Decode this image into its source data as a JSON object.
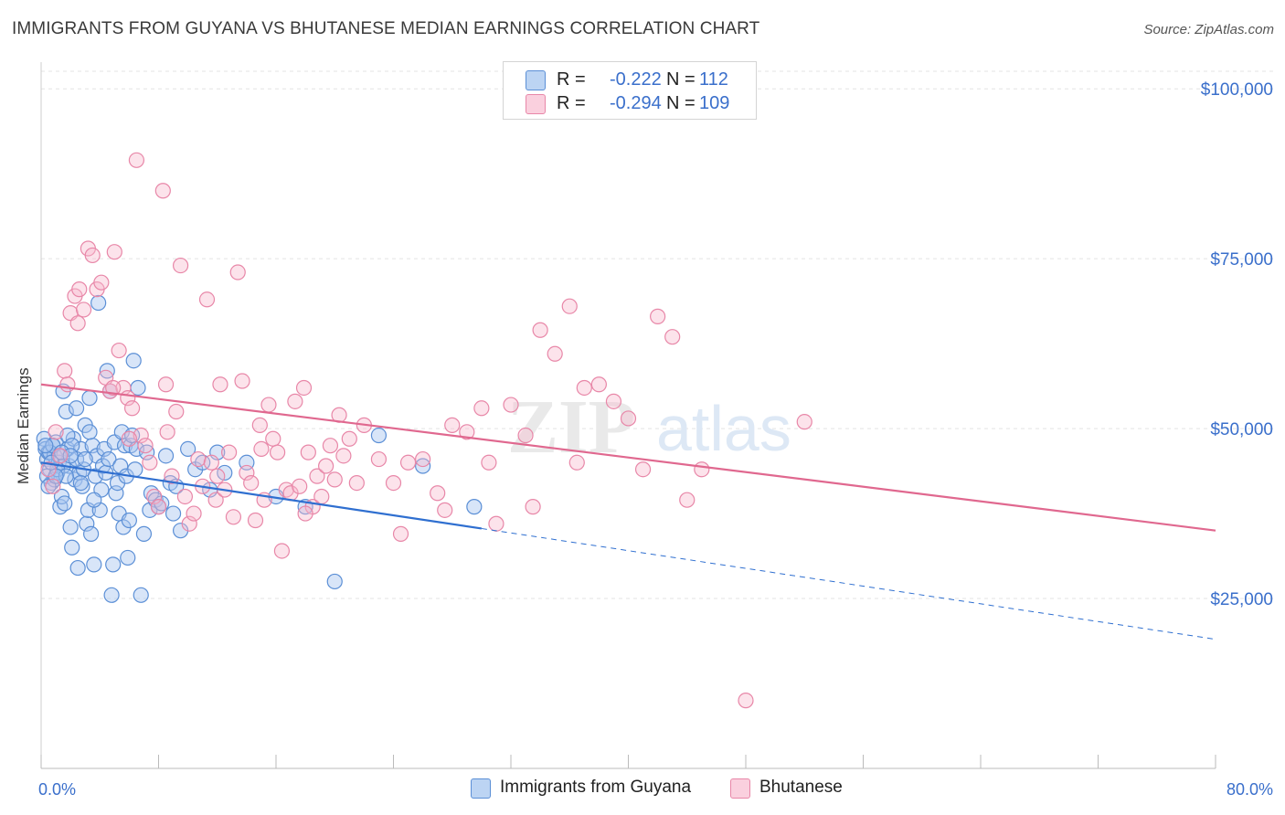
{
  "title": "IMMIGRANTS FROM GUYANA VS BHUTANESE MEDIAN EARNINGS CORRELATION CHART",
  "source": "Source: ZipAtlas.com",
  "watermark_zip": "ZIP",
  "watermark_atlas": "atlas",
  "colors": {
    "blue_fill": "#a8c6f0",
    "blue_stroke": "#5b8fd6",
    "blue_line": "#2f6fd0",
    "pink_fill": "#f7b9cd",
    "pink_stroke": "#e887a8",
    "pink_line": "#e0688f",
    "tick_label": "#3a6fcb",
    "grid": "#e3e3e3"
  },
  "legend_top": {
    "rows": [
      {
        "r_label": "R =",
        "r_value": "-0.222",
        "n_label": "N =",
        "n_value": "112"
      },
      {
        "r_label": "R =",
        "r_value": "-0.294",
        "n_label": "N =",
        "n_value": "109"
      }
    ]
  },
  "legend_bottom": [
    "Immigrants from Guyana",
    "Bhutanese"
  ],
  "chart_data": {
    "type": "scatter",
    "title": "IMMIGRANTS FROM GUYANA VS BHUTANESE MEDIAN EARNINGS CORRELATION CHART",
    "xlabel": "",
    "ylabel": "Median Earnings",
    "xlim": [
      0,
      80
    ],
    "ylim": [
      0,
      105000
    ],
    "x_tick_labels": [
      "0.0%",
      "80.0%"
    ],
    "y_ticks": [
      25000,
      50000,
      75000,
      100000
    ],
    "y_tick_labels": [
      "$25,000",
      "$50,000",
      "$75,000",
      "$100,000"
    ],
    "grid": true,
    "legend": "bottom-center",
    "series": [
      {
        "name": "Immigrants from Guyana",
        "r": -0.222,
        "n": 112,
        "trend": {
          "x0": 0,
          "y0": 45000,
          "x_solid_end": 30,
          "y_solid_end": 35300,
          "x1": 80,
          "y1": 19000
        },
        "points": [
          [
            0.2,
            48500
          ],
          [
            0.3,
            47000
          ],
          [
            0.4,
            45500
          ],
          [
            0.5,
            46500
          ],
          [
            0.6,
            44000
          ],
          [
            0.7,
            42000
          ],
          [
            0.8,
            47500
          ],
          [
            0.9,
            46000
          ],
          [
            1.0,
            48000
          ],
          [
            1.1,
            43500
          ],
          [
            1.2,
            45000
          ],
          [
            1.3,
            38500
          ],
          [
            1.4,
            40000
          ],
          [
            1.5,
            55500
          ],
          [
            1.6,
            39000
          ],
          [
            1.7,
            52500
          ],
          [
            1.8,
            47000
          ],
          [
            1.9,
            44500
          ],
          [
            2.0,
            35500
          ],
          [
            2.1,
            32500
          ],
          [
            2.2,
            48500
          ],
          [
            2.3,
            42500
          ],
          [
            2.4,
            53000
          ],
          [
            2.5,
            29500
          ],
          [
            2.6,
            43500
          ],
          [
            2.7,
            47000
          ],
          [
            2.8,
            41500
          ],
          [
            2.9,
            44000
          ],
          [
            3.0,
            50500
          ],
          [
            3.1,
            36000
          ],
          [
            3.2,
            38000
          ],
          [
            3.3,
            54500
          ],
          [
            3.4,
            34500
          ],
          [
            3.5,
            47500
          ],
          [
            3.6,
            30000
          ],
          [
            3.7,
            43000
          ],
          [
            3.8,
            46000
          ],
          [
            3.9,
            68500
          ],
          [
            4.0,
            38000
          ],
          [
            4.1,
            41000
          ],
          [
            4.2,
            44500
          ],
          [
            4.3,
            47000
          ],
          [
            4.4,
            43500
          ],
          [
            4.5,
            58500
          ],
          [
            4.6,
            45500
          ],
          [
            4.7,
            55500
          ],
          [
            4.8,
            25500
          ],
          [
            4.9,
            30000
          ],
          [
            5.0,
            48000
          ],
          [
            5.1,
            40500
          ],
          [
            5.2,
            42000
          ],
          [
            5.3,
            37500
          ],
          [
            5.4,
            44500
          ],
          [
            5.5,
            49500
          ],
          [
            5.6,
            35500
          ],
          [
            5.7,
            47500
          ],
          [
            5.8,
            43000
          ],
          [
            5.9,
            31000
          ],
          [
            6.0,
            36500
          ],
          [
            6.1,
            47500
          ],
          [
            6.2,
            49000
          ],
          [
            6.3,
            60000
          ],
          [
            6.4,
            44000
          ],
          [
            6.5,
            47000
          ],
          [
            6.6,
            56000
          ],
          [
            6.8,
            25500
          ],
          [
            7.0,
            34500
          ],
          [
            7.2,
            46500
          ],
          [
            7.4,
            38000
          ],
          [
            7.5,
            40500
          ],
          [
            7.8,
            39500
          ],
          [
            8.0,
            38500
          ],
          [
            8.2,
            39000
          ],
          [
            8.5,
            46000
          ],
          [
            8.8,
            42000
          ],
          [
            9.0,
            37500
          ],
          [
            9.2,
            41500
          ],
          [
            9.5,
            35000
          ],
          [
            10.0,
            47000
          ],
          [
            10.5,
            44000
          ],
          [
            11.0,
            45000
          ],
          [
            11.5,
            41000
          ],
          [
            12.0,
            46500
          ],
          [
            12.5,
            43500
          ],
          [
            0.4,
            43000
          ],
          [
            0.6,
            46500
          ],
          [
            0.9,
            42500
          ],
          [
            1.2,
            46000
          ],
          [
            1.5,
            44500
          ],
          [
            1.8,
            49000
          ],
          [
            2.1,
            47500
          ],
          [
            2.4,
            45500
          ],
          [
            2.7,
            42000
          ],
          [
            3.0,
            45500
          ],
          [
            3.3,
            49500
          ],
          [
            3.6,
            39500
          ],
          [
            0.5,
            41500
          ],
          [
            0.8,
            47500
          ],
          [
            1.1,
            44000
          ],
          [
            1.4,
            46500
          ],
          [
            1.7,
            43000
          ],
          [
            2.0,
            46000
          ],
          [
            14.0,
            45000
          ],
          [
            16.0,
            40000
          ],
          [
            18.0,
            38500
          ],
          [
            20.0,
            27500
          ],
          [
            23.0,
            49000
          ],
          [
            26.0,
            44500
          ],
          [
            29.5,
            38500
          ],
          [
            0.3,
            47500
          ],
          [
            0.7,
            45000
          ],
          [
            1.0,
            43000
          ]
        ]
      },
      {
        "name": "Bhutanese",
        "r": -0.294,
        "n": 109,
        "trend": {
          "x0": 0,
          "y0": 56500,
          "x1": 80,
          "y1": 35000
        },
        "points": [
          [
            0.5,
            44000
          ],
          [
            0.8,
            41500
          ],
          [
            1.0,
            49500
          ],
          [
            1.3,
            46000
          ],
          [
            1.6,
            58500
          ],
          [
            1.8,
            56500
          ],
          [
            2.0,
            67000
          ],
          [
            2.3,
            69500
          ],
          [
            2.6,
            70500
          ],
          [
            2.9,
            67500
          ],
          [
            3.2,
            76500
          ],
          [
            3.5,
            75500
          ],
          [
            3.8,
            70500
          ],
          [
            4.1,
            71500
          ],
          [
            4.4,
            57500
          ],
          [
            4.7,
            55500
          ],
          [
            5.0,
            76000
          ],
          [
            5.3,
            61500
          ],
          [
            5.6,
            56000
          ],
          [
            5.9,
            54500
          ],
          [
            6.2,
            53000
          ],
          [
            6.5,
            89500
          ],
          [
            6.8,
            49000
          ],
          [
            7.1,
            47500
          ],
          [
            7.4,
            45000
          ],
          [
            7.7,
            40000
          ],
          [
            8.0,
            38500
          ],
          [
            8.3,
            85000
          ],
          [
            8.6,
            49500
          ],
          [
            8.9,
            43000
          ],
          [
            9.2,
            52500
          ],
          [
            9.5,
            74000
          ],
          [
            9.8,
            40000
          ],
          [
            10.1,
            36000
          ],
          [
            10.4,
            37500
          ],
          [
            10.7,
            45500
          ],
          [
            11.0,
            41500
          ],
          [
            11.3,
            69000
          ],
          [
            11.6,
            45000
          ],
          [
            11.9,
            39500
          ],
          [
            12.2,
            56500
          ],
          [
            12.5,
            41000
          ],
          [
            12.8,
            46500
          ],
          [
            13.1,
            37000
          ],
          [
            13.4,
            73000
          ],
          [
            13.7,
            57000
          ],
          [
            14.0,
            43500
          ],
          [
            14.3,
            42000
          ],
          [
            14.6,
            36500
          ],
          [
            14.9,
            50500
          ],
          [
            15.2,
            39500
          ],
          [
            15.5,
            53500
          ],
          [
            15.8,
            48500
          ],
          [
            16.1,
            46500
          ],
          [
            16.4,
            32000
          ],
          [
            16.7,
            41000
          ],
          [
            17.0,
            40500
          ],
          [
            17.3,
            54000
          ],
          [
            17.6,
            41500
          ],
          [
            17.9,
            56000
          ],
          [
            18.2,
            46500
          ],
          [
            18.5,
            38500
          ],
          [
            18.8,
            43000
          ],
          [
            19.1,
            40000
          ],
          [
            19.4,
            44500
          ],
          [
            19.7,
            47500
          ],
          [
            20.0,
            42500
          ],
          [
            20.3,
            52000
          ],
          [
            20.6,
            46000
          ],
          [
            21.0,
            48500
          ],
          [
            22.0,
            50500
          ],
          [
            23.0,
            45500
          ],
          [
            24.0,
            42000
          ],
          [
            25.0,
            45000
          ],
          [
            26.0,
            45500
          ],
          [
            27.0,
            40500
          ],
          [
            28.0,
            50500
          ],
          [
            29.0,
            49500
          ],
          [
            30.0,
            53000
          ],
          [
            31.0,
            36000
          ],
          [
            32.0,
            53500
          ],
          [
            33.0,
            49000
          ],
          [
            34.0,
            64500
          ],
          [
            35.0,
            61000
          ],
          [
            36.0,
            68000
          ],
          [
            37.0,
            56000
          ],
          [
            38.0,
            56500
          ],
          [
            39.0,
            54000
          ],
          [
            40.0,
            51500
          ],
          [
            41.0,
            44000
          ],
          [
            42.0,
            66500
          ],
          [
            43.0,
            63500
          ],
          [
            44.0,
            39500
          ],
          [
            45.0,
            44000
          ],
          [
            48.0,
            10000
          ],
          [
            52.0,
            51000
          ],
          [
            2.5,
            65500
          ],
          [
            4.9,
            56000
          ],
          [
            6.0,
            48500
          ],
          [
            8.5,
            56500
          ],
          [
            12.0,
            43000
          ],
          [
            15.0,
            47000
          ],
          [
            18.0,
            37500
          ],
          [
            21.5,
            42000
          ],
          [
            24.5,
            34500
          ],
          [
            27.5,
            38000
          ],
          [
            30.5,
            45000
          ],
          [
            33.5,
            38500
          ],
          [
            36.5,
            45000
          ]
        ]
      }
    ]
  }
}
